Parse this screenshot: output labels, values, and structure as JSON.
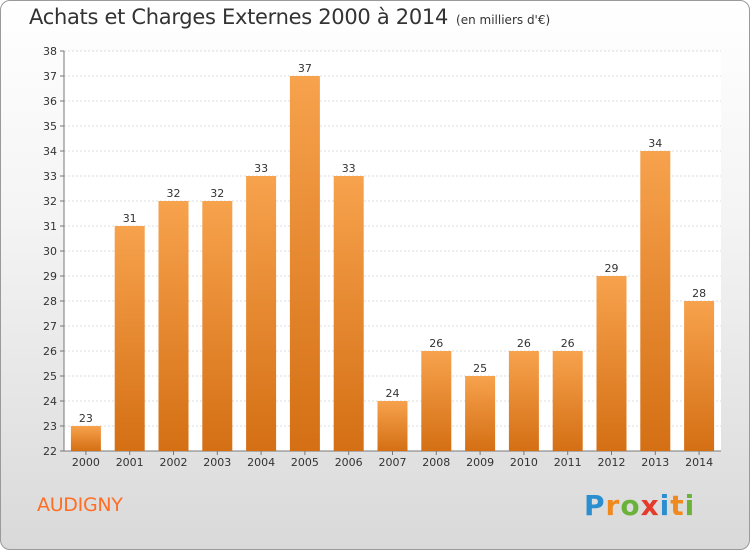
{
  "chart_data": {
    "type": "bar",
    "title": "Achats et Charges Externes 2000 à 2014",
    "subtitle": "(en milliers d'€)",
    "categories": [
      "2000",
      "2001",
      "2002",
      "2003",
      "2004",
      "2005",
      "2006",
      "2007",
      "2008",
      "2009",
      "2010",
      "2011",
      "2012",
      "2013",
      "2014"
    ],
    "values": [
      23,
      31,
      32,
      32,
      33,
      37,
      33,
      24,
      26,
      25,
      26,
      26,
      29,
      34,
      28
    ],
    "xlabel": "",
    "ylabel": "",
    "ylim": [
      22,
      38
    ],
    "ytick_step": 1,
    "grid": true,
    "legend": "none",
    "bar_color_top": "#f7a24d",
    "bar_color_bottom": "#d46f14"
  },
  "footer": {
    "city": "AUDIGNY",
    "city_color": "#ff6e24",
    "logo_text": "Proxiti",
    "logo_letters": [
      {
        "ch": "P",
        "color": "#2a8ed0"
      },
      {
        "ch": "r",
        "color": "#f08a1e"
      },
      {
        "ch": "o",
        "color": "#6bb23a"
      },
      {
        "ch": "x",
        "color": "#e33c2b"
      },
      {
        "ch": "i",
        "color": "#2a8ed0"
      },
      {
        "ch": "t",
        "color": "#f08a1e"
      },
      {
        "ch": "i",
        "color": "#6bb23a"
      }
    ]
  }
}
